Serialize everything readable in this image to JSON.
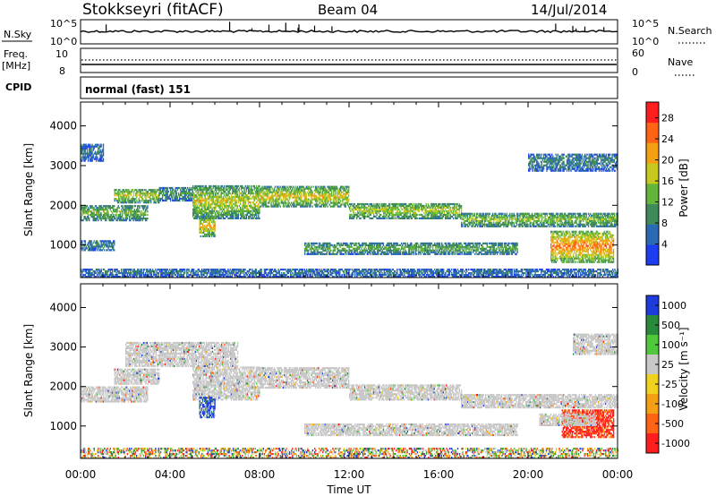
{
  "header": {
    "station": "Stokkseyri (fitACF)",
    "beam": "Beam 04",
    "date": "14/Jul/2014"
  },
  "top_panels": {
    "nsky_label": "N.Sky",
    "nsky_ticks": [
      "10^5",
      "10^0"
    ],
    "nsearch_label": "N.Search",
    "nsearch_ticks": [
      "10^5",
      "10^0"
    ],
    "freq_label": "Freq.",
    "freq_unit": "[MHz]",
    "freq_ticks": [
      "10",
      "8"
    ],
    "nave_label": "Nave",
    "nave_ticks": [
      "60",
      "0"
    ],
    "cpid_label": "CPID",
    "cpid_value": "normal (fast) 151"
  },
  "chart_data": [
    {
      "type": "heatmap",
      "name": "power",
      "ylabel": "Slant Range [km]",
      "xlabel": "",
      "xlim": [
        0,
        24
      ],
      "ylim": [
        180,
        4600
      ],
      "yticks": [
        1000,
        2000,
        3000,
        4000
      ],
      "colorbar": {
        "label": "Power [dB]",
        "ticks": [
          "4",
          "8",
          "12",
          "16",
          "20",
          "24",
          "28"
        ],
        "tick_values": [
          4,
          8,
          12,
          16,
          20,
          24,
          28
        ],
        "range": [
          0,
          31
        ],
        "colors": [
          "#1e3cf0",
          "#2a6ab4",
          "#3f8a5a",
          "#63b53c",
          "#c8c81e",
          "#f5a014",
          "#ff6414",
          "#ff1e1e"
        ]
      },
      "bands": [
        {
          "t0": 0.0,
          "t1": 3.0,
          "r0": 1600,
          "r1": 2000,
          "level": 14
        },
        {
          "t0": 1.5,
          "t1": 3.5,
          "r0": 2050,
          "r1": 2400,
          "level": 18
        },
        {
          "t0": 3.5,
          "t1": 5.0,
          "r0": 2100,
          "r1": 2450,
          "level": 10
        },
        {
          "t0": 5.0,
          "t1": 8.0,
          "r0": 1650,
          "r1": 2500,
          "level": 18
        },
        {
          "t0": 5.3,
          "t1": 6.0,
          "r0": 1200,
          "r1": 1700,
          "level": 22
        },
        {
          "t0": 8.0,
          "t1": 12.0,
          "r0": 1950,
          "r1": 2450,
          "level": 20
        },
        {
          "t0": 12.0,
          "t1": 17.0,
          "r0": 1650,
          "r1": 2050,
          "level": 17
        },
        {
          "t0": 17.0,
          "t1": 24.0,
          "r0": 1450,
          "r1": 1800,
          "level": 15
        },
        {
          "t0": 0.0,
          "t1": 1.5,
          "r0": 850,
          "r1": 1100,
          "level": 8
        },
        {
          "t0": 10.0,
          "t1": 19.5,
          "r0": 750,
          "r1": 1050,
          "level": 12
        },
        {
          "t0": 21.0,
          "t1": 23.8,
          "r0": 550,
          "r1": 1350,
          "level": 26
        },
        {
          "t0": 0.0,
          "t1": 1.0,
          "r0": 3100,
          "r1": 3550,
          "level": 6
        },
        {
          "t0": 20.0,
          "t1": 24.0,
          "r0": 2850,
          "r1": 3300,
          "level": 8
        },
        {
          "t0": 0.0,
          "t1": 24.0,
          "r0": 180,
          "r1": 400,
          "level": 6
        }
      ]
    },
    {
      "type": "heatmap",
      "name": "velocity",
      "ylabel": "Slant Range [km]",
      "xlabel": "Time UT",
      "xlim": [
        0,
        24
      ],
      "ylim": [
        180,
        4600
      ],
      "yticks": [
        1000,
        2000,
        3000,
        4000
      ],
      "xticks": [
        "00:00",
        "04:00",
        "08:00",
        "12:00",
        "16:00",
        "20:00",
        "00:00"
      ],
      "xtick_values": [
        0,
        4,
        8,
        12,
        16,
        20,
        24
      ],
      "colorbar": {
        "label": "Velocity [m s⁻¹]",
        "ticks": [
          "1000",
          "500",
          "100",
          "25",
          "-25",
          "-100",
          "-500",
          "-1000"
        ],
        "colors": [
          "#1e3cdc",
          "#2a8a3c",
          "#4fc83c",
          "#c8c8c8",
          "#f0d21e",
          "#f5a014",
          "#ff6414",
          "#ff1e1e"
        ]
      },
      "bands": [
        {
          "t0": 0.0,
          "t1": 3.0,
          "r0": 1600,
          "r1": 2000,
          "class": "ground"
        },
        {
          "t0": 1.5,
          "t1": 3.5,
          "r0": 2050,
          "r1": 2450,
          "class": "ground"
        },
        {
          "t0": 5.0,
          "t1": 8.0,
          "r0": 1650,
          "r1": 2500,
          "class": "ground"
        },
        {
          "t0": 5.3,
          "t1": 6.0,
          "r0": 1200,
          "r1": 1700,
          "class": "toward"
        },
        {
          "t0": 8.0,
          "t1": 12.0,
          "r0": 1950,
          "r1": 2450,
          "class": "ground"
        },
        {
          "t0": 12.0,
          "t1": 17.0,
          "r0": 1650,
          "r1": 2050,
          "class": "ground"
        },
        {
          "t0": 17.0,
          "t1": 24.0,
          "r0": 1450,
          "r1": 1800,
          "class": "ground"
        },
        {
          "t0": 2.0,
          "t1": 7.0,
          "r0": 2500,
          "r1": 3100,
          "class": "ground"
        },
        {
          "t0": 10.0,
          "t1": 19.5,
          "r0": 750,
          "r1": 1050,
          "class": "ground"
        },
        {
          "t0": 21.5,
          "t1": 23.8,
          "r0": 700,
          "r1": 1400,
          "class": "away"
        },
        {
          "t0": 20.5,
          "t1": 23.0,
          "r0": 1000,
          "r1": 1300,
          "class": "ground"
        },
        {
          "t0": 22.0,
          "t1": 24.0,
          "r0": 2800,
          "r1": 3300,
          "class": "ground"
        },
        {
          "t0": 0.0,
          "t1": 24.0,
          "r0": 180,
          "r1": 420,
          "class": "mixed"
        }
      ]
    }
  ]
}
